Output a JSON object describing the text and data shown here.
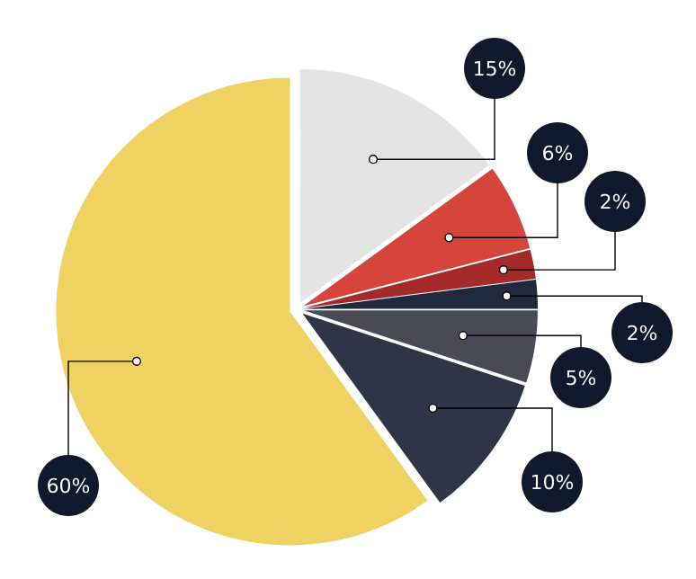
{
  "chart_data": {
    "type": "pie",
    "categories": [
      null,
      null,
      null,
      null,
      null,
      null,
      null
    ],
    "values": [
      15,
      6,
      2,
      2,
      5,
      10,
      60
    ],
    "value_labels": [
      "15%",
      "6%",
      "2%",
      "2%",
      "5%",
      "10%",
      "60%"
    ],
    "colors": [
      "#e4e4e4",
      "#d6453b",
      "#a52a2a",
      "#1f2b3c",
      "#4a4956",
      "#2f3446",
      "#efd262"
    ]
  }
}
